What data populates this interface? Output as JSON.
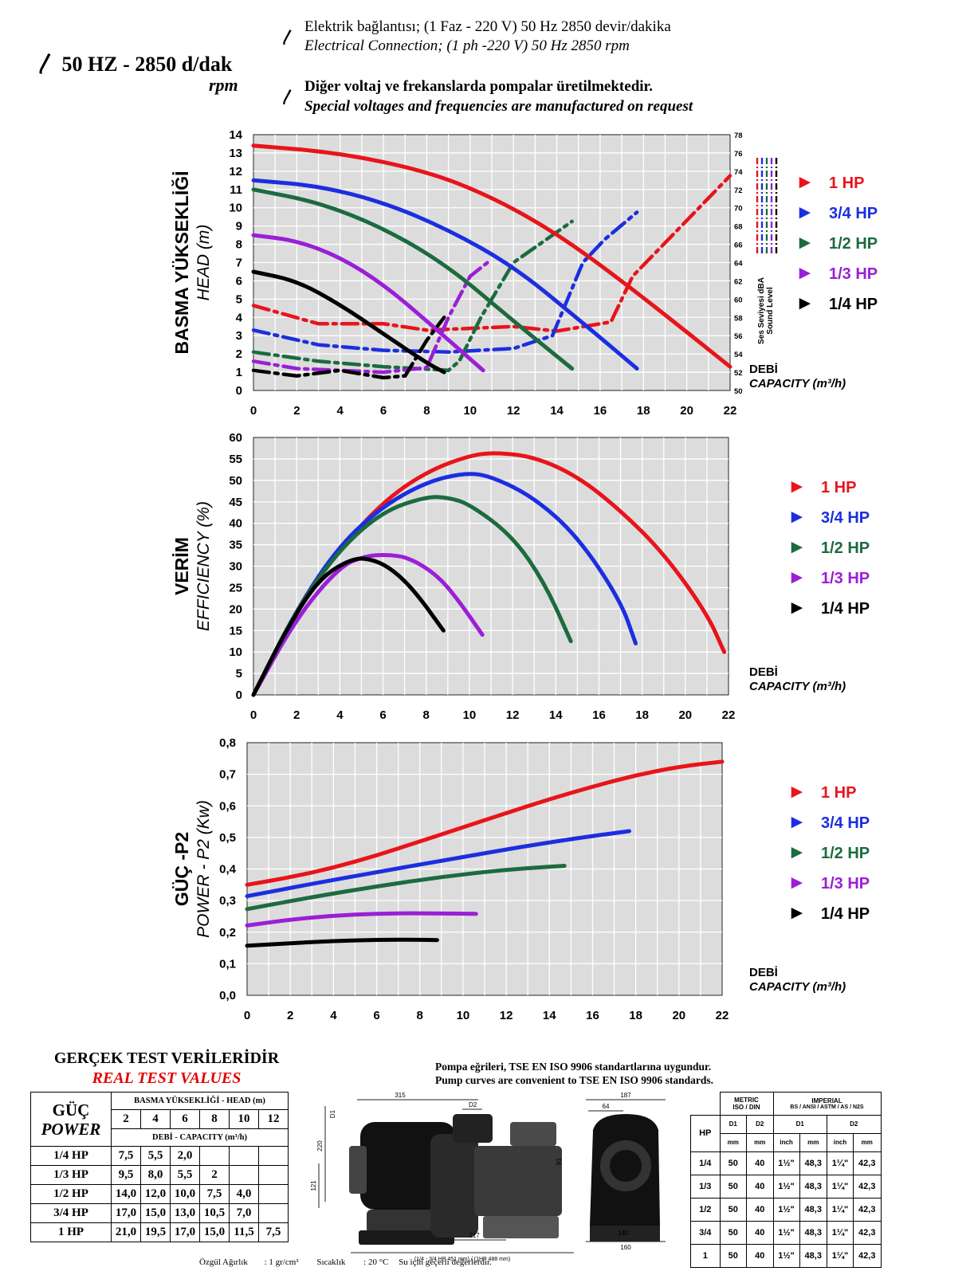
{
  "header": {
    "hz_title": "50 HZ - 2850 d/dak",
    "rpm": "rpm",
    "bolt": "〳",
    "electric_tr": "Elektrik bağlantısı; (1 Faz - 220 V) 50 Hz 2850 devir/dakika",
    "electric_en": "Electrical Connection; (1 ph -220 V)  50 Hz 2850 rpm",
    "special_tr": "Diğer voltaj ve frekanslarda pompalar üretilmektedir.",
    "special_en": "Special voltages and frequencies  are manufactured on request"
  },
  "legend": [
    {
      "marker": "►",
      "label": "1 HP",
      "color": "#e8141b"
    },
    {
      "marker": "►",
      "label": "3/4 HP",
      "color": "#1c2ee0"
    },
    {
      "marker": "►",
      "label": "1/2 HP",
      "color": "#1c6b3f"
    },
    {
      "marker": "►",
      "label": "1/3 HP",
      "color": "#9b1fd6"
    },
    {
      "marker": "►",
      "label": "1/4 HP",
      "color": "#000000"
    }
  ],
  "chart_data": [
    {
      "type": "line",
      "ylabel_tr": "BASMA YÜKSEKLİĞİ",
      "ylabel_en": "HEAD (m)",
      "y2label_tr": "Ses Seviyesi dBA",
      "y2label_en": "Sound Level",
      "xlabel_tr": "DEBİ",
      "xlabel_en": "CAPACITY (m³/h)",
      "xlim": [
        0,
        22
      ],
      "ylim": [
        0,
        14
      ],
      "y2lim": [
        50,
        78
      ],
      "xticks": [
        "0",
        "2",
        "4",
        "6",
        "8",
        "10",
        "12",
        "14",
        "16",
        "18",
        "20",
        "22"
      ],
      "yticks": [
        "0",
        "1",
        "2",
        "3",
        "4",
        "5",
        "6",
        "7",
        "8",
        "9",
        "10",
        "11",
        "12",
        "13",
        "14"
      ],
      "y2ticks": [
        "50",
        "52",
        "54",
        "56",
        "58",
        "60",
        "62",
        "64",
        "66",
        "68",
        "70",
        "72",
        "74",
        "76",
        "78"
      ],
      "series": [
        {
          "name": "1 HP",
          "color": "#e8141b",
          "x": [
            0,
            4,
            8,
            11,
            14,
            17,
            20,
            22
          ],
          "y": [
            13.4,
            13.0,
            12.0,
            10.6,
            8.6,
            6.0,
            3.2,
            1.3
          ]
        },
        {
          "name": "3/4 HP",
          "color": "#1c2ee0",
          "x": [
            0,
            3,
            6,
            9,
            12,
            15,
            17.7
          ],
          "y": [
            11.5,
            11.2,
            10.3,
            8.8,
            6.8,
            3.9,
            1.2
          ]
        },
        {
          "name": "1/2 HP",
          "color": "#1c6b3f",
          "x": [
            0,
            3,
            6,
            9,
            12,
            14.7
          ],
          "y": [
            11.0,
            10.3,
            8.9,
            6.8,
            3.8,
            1.2
          ]
        },
        {
          "name": "1/3 HP",
          "color": "#9b1fd6",
          "x": [
            0,
            2,
            4,
            6,
            8,
            10.6
          ],
          "y": [
            8.5,
            8.2,
            7.3,
            5.8,
            3.8,
            1.1
          ]
        },
        {
          "name": "1/4 HP",
          "color": "#000000",
          "x": [
            0,
            2,
            4,
            6,
            8,
            8.8
          ],
          "y": [
            6.5,
            6.0,
            4.7,
            3.1,
            1.5,
            1.0
          ]
        }
      ],
      "sound_series": [
        {
          "name": "1 HP",
          "color": "#e8141b",
          "x": [
            0,
            3,
            6,
            8,
            12,
            14,
            16.5,
            17.5,
            22
          ],
          "y": [
            59.3,
            57.3,
            57.3,
            56.6,
            57.0,
            56.5,
            57.5,
            62.5,
            73.5
          ]
        },
        {
          "name": "3/4 HP",
          "color": "#1c2ee0",
          "x": [
            0,
            3,
            6,
            9,
            12,
            13.8,
            15.2,
            16.2,
            17.7
          ],
          "y": [
            56.6,
            55.0,
            54.4,
            54.2,
            54.6,
            56.0,
            64.0,
            66.5,
            69.5
          ]
        },
        {
          "name": "1/2 HP",
          "color": "#1c6b3f",
          "x": [
            0,
            3,
            6,
            9,
            9.5,
            10.5,
            12,
            14.7
          ],
          "y": [
            54.2,
            53.2,
            52.6,
            52.2,
            53.2,
            58.0,
            64.0,
            68.5
          ]
        },
        {
          "name": "1/3 HP",
          "color": "#9b1fd6",
          "x": [
            0,
            2,
            4,
            6,
            8,
            9,
            10,
            10.8
          ],
          "y": [
            53.2,
            52.4,
            52.2,
            52.0,
            52.5,
            58.0,
            62.5,
            64.0
          ]
        },
        {
          "name": "1/4 HP",
          "color": "#000000",
          "x": [
            0,
            2,
            4,
            6,
            7,
            8,
            8.8
          ],
          "y": [
            52.2,
            51.6,
            52.2,
            51.4,
            51.6,
            55.5,
            58.0
          ]
        }
      ]
    },
    {
      "type": "line",
      "ylabel_tr": "VERİM",
      "ylabel_en": "EFFICIENCY (%)",
      "xlabel_tr": "DEBİ",
      "xlabel_en": "CAPACITY (m³/h)",
      "xlim": [
        0,
        22
      ],
      "ylim": [
        0,
        60
      ],
      "xticks": [
        "0",
        "2",
        "4",
        "6",
        "8",
        "10",
        "12",
        "14",
        "16",
        "18",
        "20",
        "22"
      ],
      "yticks": [
        "0",
        "5",
        "10",
        "15",
        "20",
        "25",
        "30",
        "35",
        "40",
        "45",
        "50",
        "55",
        "60"
      ],
      "series": [
        {
          "name": "1 HP",
          "color": "#e8141b",
          "x": [
            0,
            2,
            4,
            6,
            8,
            10,
            11.2,
            13,
            15,
            17,
            19,
            21,
            21.8
          ],
          "y": [
            0,
            20,
            34,
            45,
            52,
            55.8,
            56.5,
            55.5,
            51,
            43,
            33,
            19,
            10
          ]
        },
        {
          "name": "3/4 HP",
          "color": "#1c2ee0",
          "x": [
            0,
            2,
            4,
            6,
            8,
            9.8,
            11,
            13,
            15,
            17,
            17.7
          ],
          "y": [
            0,
            20,
            35,
            44,
            49.6,
            51.8,
            51,
            46,
            37,
            22,
            12
          ]
        },
        {
          "name": "1/2 HP",
          "color": "#1c6b3f",
          "x": [
            0,
            2,
            4,
            6,
            8,
            9,
            10,
            12,
            13.5,
            14.7
          ],
          "y": [
            0,
            20,
            34,
            42.8,
            46.2,
            46,
            44.5,
            37,
            26,
            12.5
          ]
        },
        {
          "name": "1/3 HP",
          "color": "#9b1fd6",
          "x": [
            0,
            2,
            4,
            5.2,
            6.2,
            7.2,
            8.5,
            9.5,
            10.6
          ],
          "y": [
            0,
            18,
            30,
            32.4,
            32.7,
            32.0,
            28,
            22,
            14
          ]
        },
        {
          "name": "1/4 HP",
          "color": "#000000",
          "x": [
            0,
            1.5,
            3,
            4.6,
            5.6,
            6.5,
            7.5,
            8.8
          ],
          "y": [
            0,
            15,
            27,
            32,
            31.5,
            29,
            24,
            15
          ]
        }
      ]
    },
    {
      "type": "line",
      "ylabel_tr": "GÜÇ -P2",
      "ylabel_en": "POWER - P2 (Kw)",
      "xlabel_tr": "DEBİ",
      "xlabel_en": "CAPACITY (m³/h)",
      "xlim": [
        0,
        22
      ],
      "ylim": [
        0,
        0.8
      ],
      "xticks": [
        "0",
        "2",
        "4",
        "6",
        "8",
        "10",
        "12",
        "14",
        "16",
        "18",
        "20",
        "22"
      ],
      "yticks": [
        "0,0",
        "0,1",
        "0,2",
        "0,3",
        "0,4",
        "0,5",
        "0,6",
        "0,7",
        "0,8"
      ],
      "series": [
        {
          "name": "1 HP",
          "color": "#e8141b",
          "x": [
            0,
            2,
            4,
            6,
            8,
            10,
            12,
            14,
            16,
            18,
            20,
            22
          ],
          "y": [
            0.35,
            0.374,
            0.404,
            0.443,
            0.487,
            0.532,
            0.577,
            0.621,
            0.661,
            0.697,
            0.724,
            0.74
          ]
        },
        {
          "name": "3/4 HP",
          "color": "#1c2ee0",
          "x": [
            0,
            3,
            6,
            9,
            12,
            15,
            17.7
          ],
          "y": [
            0.314,
            0.353,
            0.39,
            0.426,
            0.462,
            0.495,
            0.52
          ]
        },
        {
          "name": "1/2 HP",
          "color": "#1c6b3f",
          "x": [
            0,
            3,
            6,
            9,
            12,
            14.7
          ],
          "y": [
            0.273,
            0.311,
            0.345,
            0.375,
            0.398,
            0.41
          ]
        },
        {
          "name": "1/3 HP",
          "color": "#9b1fd6",
          "x": [
            0,
            2,
            4,
            6,
            8,
            10.6
          ],
          "y": [
            0.221,
            0.24,
            0.252,
            0.259,
            0.26,
            0.258
          ]
        },
        {
          "name": "1/4 HP",
          "color": "#000000",
          "x": [
            0,
            2,
            4,
            6,
            8,
            8.8
          ],
          "y": [
            0.157,
            0.165,
            0.172,
            0.176,
            0.176,
            0.175
          ]
        }
      ]
    }
  ],
  "real_values": {
    "title_tr": "GERÇEK TEST VERİLERİDİR",
    "title_en": "REAL TEST VALUES",
    "power_tr": "GÜÇ",
    "power_en": "POWER",
    "head_label": "BASMA YÜKSEKLİĞİ - HEAD (m)",
    "capacity_label": "DEBİ - CAPACITY (m³/h)",
    "heads": [
      "2",
      "4",
      "6",
      "8",
      "10",
      "12"
    ],
    "rows": [
      {
        "hp": "1/4 HP",
        "values": [
          "7,5",
          "5,5",
          "2,0",
          "",
          "",
          ""
        ]
      },
      {
        "hp": "1/3 HP",
        "values": [
          "9,5",
          "8,0",
          "5,5",
          "2",
          "",
          ""
        ]
      },
      {
        "hp": "1/2 HP",
        "values": [
          "14,0",
          "12,0",
          "10,0",
          "7,5",
          "4,0",
          ""
        ]
      },
      {
        "hp": "3/4 HP",
        "values": [
          "17,0",
          "15,0",
          "13,0",
          "10,5",
          "7,0",
          ""
        ]
      },
      {
        "hp": "1 HP",
        "values": [
          "21,0",
          "19,5",
          "17,0",
          "15,0",
          "11,5",
          "7,5"
        ]
      }
    ]
  },
  "standards": {
    "tr": "Pompa eğrileri, TSE EN ISO 9906 standartlarına uygundur.",
    "en": "Pump curves are convenient to TSE EN ISO 9906 standards."
  },
  "drawing": {
    "dims": [
      "315",
      "D2",
      "D1",
      "220",
      "121",
      "217",
      "93",
      "(1/4 - 3/4 HP  451 mm) / (1HP 488 mm)",
      "187",
      "64",
      "140",
      "160"
    ]
  },
  "connections": {
    "metric": "METRIC",
    "metric_sub": "ISO / DIN",
    "imperial": "IMPERIAL",
    "imperial_sub": "BS / ANSI / ASTM / AS / N2S",
    "hp": "HP",
    "d1": "D1",
    "d2": "D2",
    "mm": "mm",
    "inch": "inch",
    "rows": [
      {
        "hp": "1/4",
        "d1": "50",
        "d2": "40",
        "in1": "1½\"",
        "mm1": "48,3",
        "in2": "1¼\"",
        "mm2": "42,3"
      },
      {
        "hp": "1/3",
        "d1": "50",
        "d2": "40",
        "in1": "1½\"",
        "mm1": "48,3",
        "in2": "1¼\"",
        "mm2": "42,3"
      },
      {
        "hp": "1/2",
        "d1": "50",
        "d2": "40",
        "in1": "1½\"",
        "mm1": "48,3",
        "in2": "1¼\"",
        "mm2": "42,3"
      },
      {
        "hp": "3/4",
        "d1": "50",
        "d2": "40",
        "in1": "1½\"",
        "mm1": "48,3",
        "in2": "1¼\"",
        "mm2": "42,3"
      },
      {
        "hp": "1",
        "d1": "50",
        "d2": "40",
        "in1": "1½\"",
        "mm1": "48,3",
        "in2": "1¼\"",
        "mm2": "42,3"
      }
    ]
  },
  "footer": {
    "specific_gravity": "Özgül Ağırlık",
    "sg_value": ": 1 gr/cm³",
    "temperature": "Sıcaklık",
    "temp_value": ": 20 °C",
    "water_note": "Su için geçerli değerlerdir."
  }
}
